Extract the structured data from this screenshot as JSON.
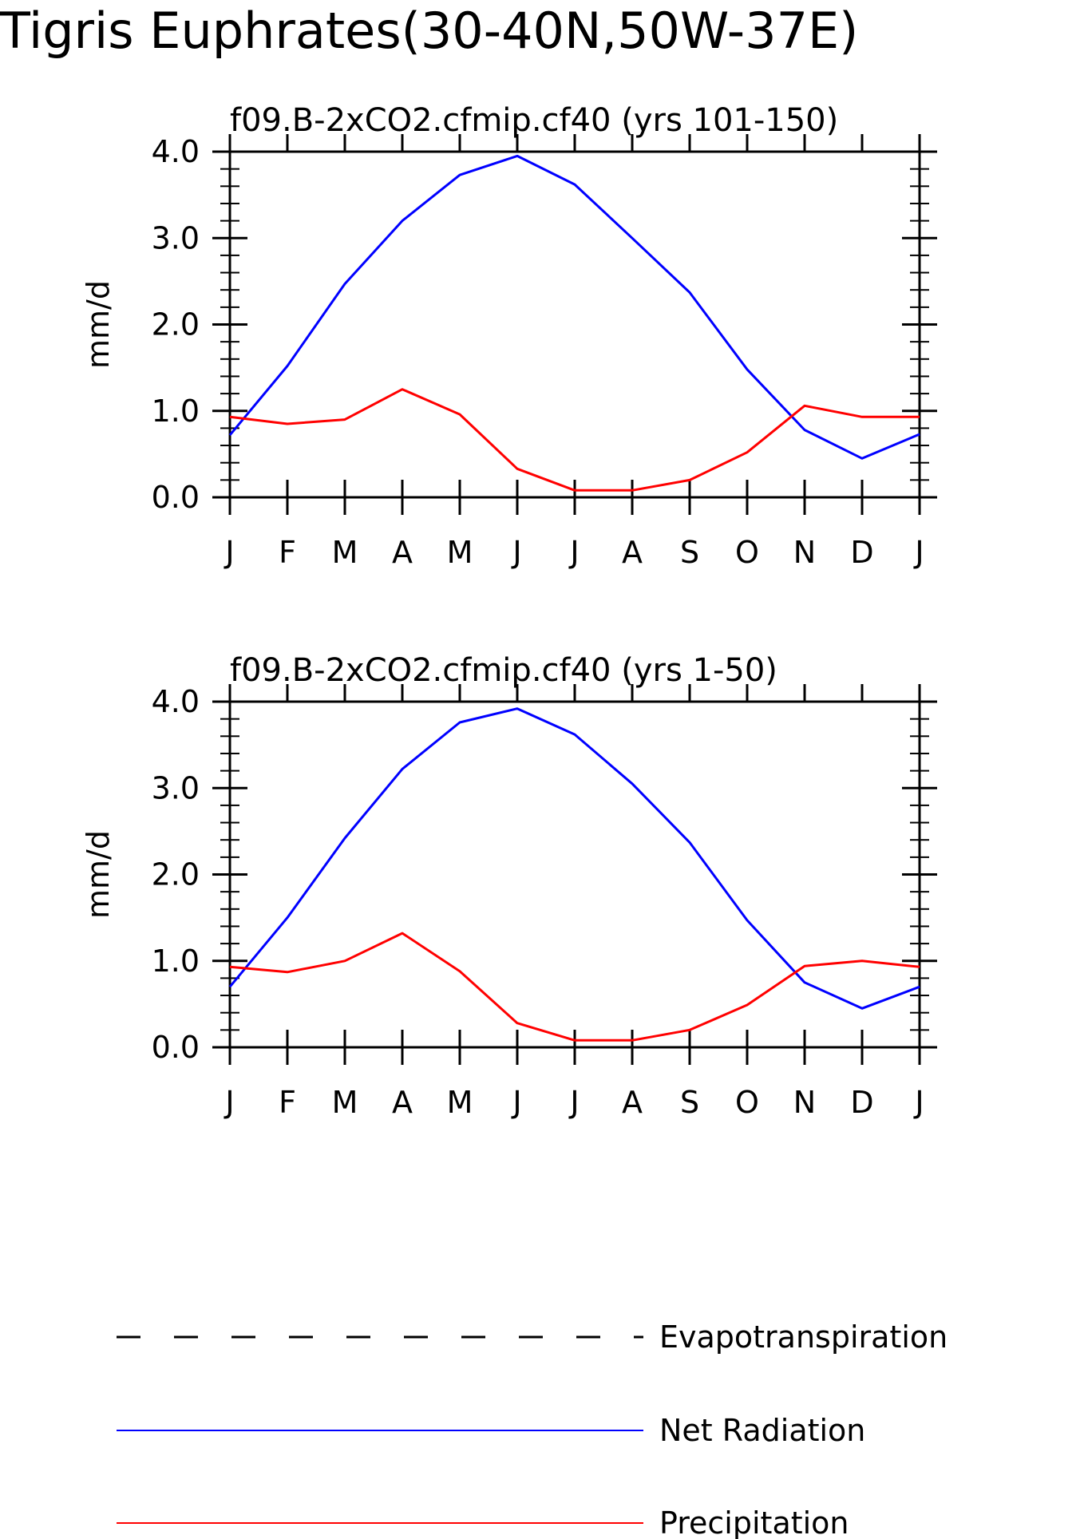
{
  "title": "Tigris Euphrates(30-40N,50W-37E)",
  "colors": {
    "Evapotranspiration": "#000000",
    "Net Radiation": "#0000ff",
    "Precipitation": "#ff0000"
  },
  "legend": [
    {
      "name": "Evapotranspiration",
      "style": "dashed"
    },
    {
      "name": "Net Radiation",
      "style": "solid"
    },
    {
      "name": "Precipitation",
      "style": "solid"
    }
  ],
  "chart_data": [
    {
      "type": "line",
      "title": "f09.B-2xCO2.cfmip.cf40 (yrs 101-150)",
      "ylabel": "mm/d",
      "xlabel": "",
      "ylim": [
        0,
        4
      ],
      "yticks": [
        "0.0",
        "1.0",
        "2.0",
        "3.0",
        "4.0"
      ],
      "categories": [
        "J",
        "F",
        "M",
        "A",
        "M",
        "J",
        "J",
        "A",
        "S",
        "O",
        "N",
        "D",
        "J"
      ],
      "series": [
        {
          "name": "Net Radiation",
          "values": [
            0.72,
            1.52,
            2.47,
            3.2,
            3.73,
            3.95,
            3.62,
            3.0,
            2.37,
            1.48,
            0.78,
            0.45,
            0.73
          ]
        },
        {
          "name": "Precipitation",
          "values": [
            0.93,
            0.85,
            0.9,
            1.25,
            0.96,
            0.33,
            0.08,
            0.08,
            0.2,
            0.52,
            1.06,
            0.93,
            0.93
          ]
        }
      ]
    },
    {
      "type": "line",
      "title": "f09.B-2xCO2.cfmip.cf40 (yrs 1-50)",
      "ylabel": "mm/d",
      "xlabel": "",
      "ylim": [
        0,
        4
      ],
      "yticks": [
        "0.0",
        "1.0",
        "2.0",
        "3.0",
        "4.0"
      ],
      "categories": [
        "J",
        "F",
        "M",
        "A",
        "M",
        "J",
        "J",
        "A",
        "S",
        "O",
        "N",
        "D",
        "J"
      ],
      "series": [
        {
          "name": "Net Radiation",
          "values": [
            0.7,
            1.5,
            2.42,
            3.22,
            3.76,
            3.92,
            3.62,
            3.05,
            2.37,
            1.47,
            0.75,
            0.45,
            0.7
          ]
        },
        {
          "name": "Precipitation",
          "values": [
            0.93,
            0.87,
            1.0,
            1.32,
            0.88,
            0.28,
            0.08,
            0.08,
            0.2,
            0.49,
            0.94,
            1.0,
            0.93
          ]
        }
      ]
    }
  ]
}
